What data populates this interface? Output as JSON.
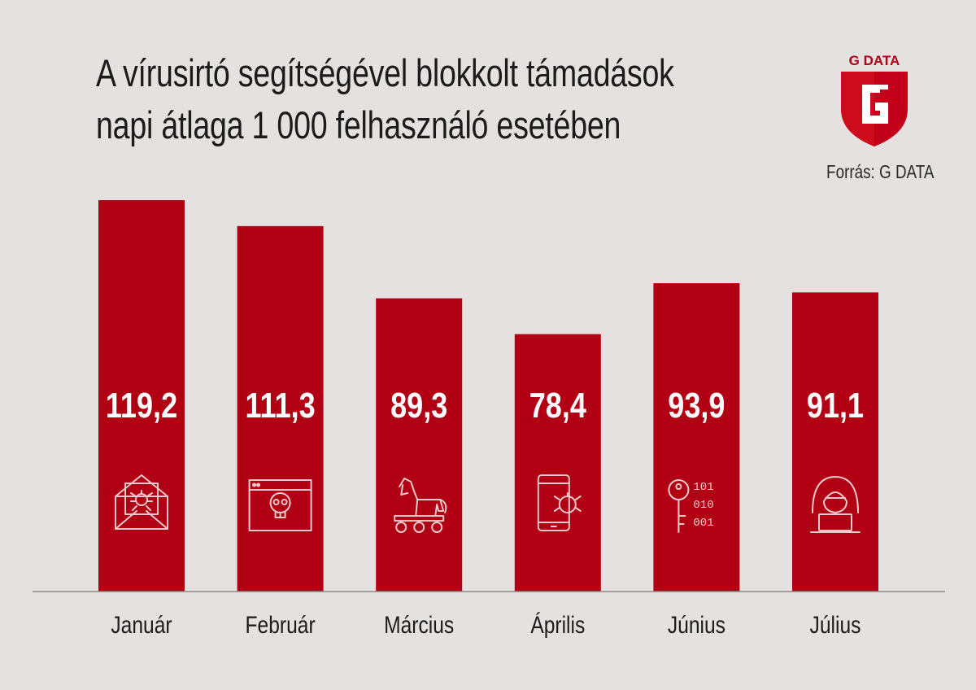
{
  "title_lines": [
    "A vírusirtó segítségével blokkolt támadások",
    "napi átlaga 1 000 felhasználó esetében"
  ],
  "source": "Forrás: G DATA",
  "logo_text": "G DATA",
  "colors": {
    "bar": "#b10013",
    "background": "#e4e1e0",
    "text": "#1b1b1b",
    "label_on_bar": "#ffffff"
  },
  "chart_data": {
    "type": "bar",
    "title": "A vírusirtó segítségével blokkolt támadások napi átlaga 1 000 felhasználó esetében",
    "categories": [
      "Január",
      "Február",
      "Március",
      "Április",
      "Június",
      "Július"
    ],
    "values": [
      119.2,
      111.3,
      89.3,
      78.4,
      93.9,
      91.1
    ],
    "value_labels": [
      "119,2",
      "111,3",
      "89,3",
      "78,4",
      "93,9",
      "91,1"
    ],
    "icons": [
      "email-bug-icon",
      "browser-skull-icon",
      "trojan-horse-icon",
      "phone-bug-icon",
      "key-binary-icon",
      "hacker-icon"
    ],
    "xlabel": "",
    "ylabel": "",
    "ylim": [
      0,
      119.2
    ],
    "grid": false,
    "legend": "none"
  }
}
